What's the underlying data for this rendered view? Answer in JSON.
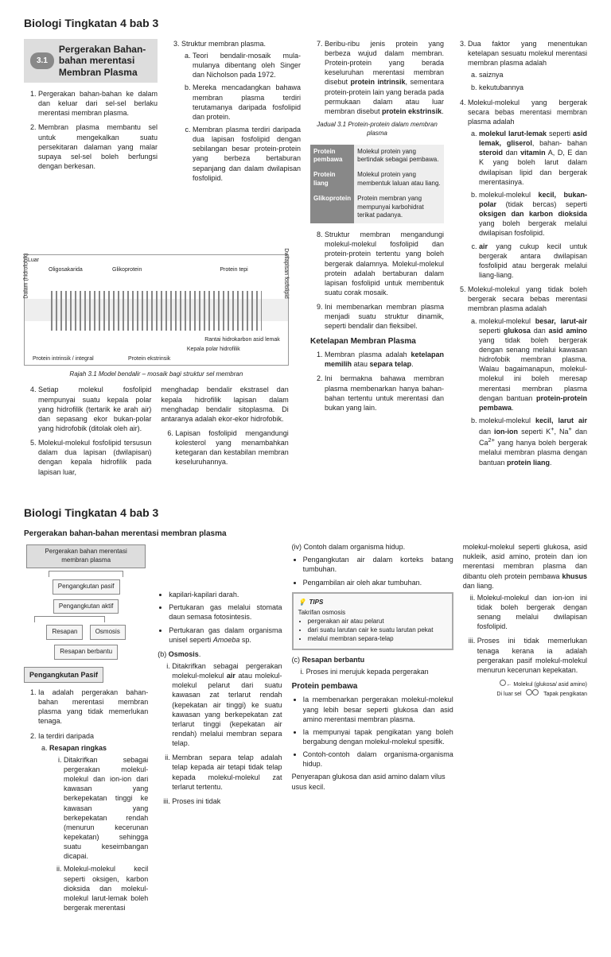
{
  "page1": {
    "title": "Biologi Tingkatan 4 bab 3",
    "badge": "3.1",
    "heading": "Pergerakan Bahan-bahan merentasi Membran Plasma",
    "list1": [
      "Pergerakan bahan-bahan ke dalam dan keluar dari sel-sel berlaku merentasi membran plasma.",
      "Membran plasma membantu sel untuk mengekalkan suatu persekitaran dalaman yang malar supaya sel-sel boleh berfungsi dengan berkesan."
    ],
    "figLabels": {
      "luar": "Luar",
      "oligo": "Oligosakarida",
      "gliko": "Glikoprotein",
      "tepi": "Protein tepi",
      "dalam": "Dalam (hidrofobik)",
      "dwilapisan": "Dwilapisan fosfolipid",
      "intrinsik": "Protein intrinsik / integral",
      "ekstrinsik": "Protein ekstrinsik",
      "kepala": "Kepala polar hidrofilik",
      "rantai": "Rantai hidrokarbon asid lemak"
    },
    "figCaption": "Rajah 3.1 Model bendalir – mosaik bagi struktur sel membran",
    "list4": [
      "Setiap molekul fosfolipid mempunyai suatu kepala polar yang hidrofilik (tertarik ke arah air) dan sepasang ekor bukan-polar yang hidrofobik (ditolak oleh air).",
      "Molekul-molekul fosfolipid tersusun dalam dua lapisan (dwilapisan) dengan kepala hidrofilik pada lapisan luar,"
    ],
    "col2_3": {
      "intro": "Struktur membran plasma.",
      "items": [
        "Teori bendalir-mosaik mula-mulanya dibentang oleh Singer dan Nicholson pada 1972.",
        "Mereka mencadangkan bahawa membran plasma terdiri terutamanya daripada fosfolipid dan protein.",
        "Membran plasma terdiri daripada dua lapisan fosfolipid dengan sebilangan besar protein-protein yang berbeza bertaburan sepanjang dan dalam dwilapisan fosfolipid."
      ],
      "cont": "menghadap bendalir ekstrasel dan kepala hidrofilik lapisan dalam menghadap bendalir sitoplasma. Di antaranya adalah ekor-ekor hidrofobik.",
      "item6": "Lapisan fosfolipid mengandungi kolesterol yang menambahkan ketegaran dan kestabilan membran keseluruhannya."
    },
    "col3": {
      "item7": "Beribu-ribu jenis protein yang berbeza wujud dalam membran. Protein-protein yang berada keseluruhan merentasi membran disebut <b>protein intrinsik</b>, sementara protein-protein lain yang berada pada permukaan dalam atau luar membran disebut <b>protein ekstrinsik</b>.",
      "tblCaption": "Jadual 3.1 Protein-protein dalam membran plasma",
      "tbl": [
        [
          "Protein pembawa",
          "Molekul protein yang bertindak sebagai pembawa."
        ],
        [
          "Protein liang",
          "Molekul protein yang membentuk laluan atau liang."
        ],
        [
          "Glikoprotein",
          "Protein membran yang mempunyai karbohidrat terikat padanya."
        ]
      ],
      "item8": "Struktur membran mengandungi molekul-molekul fosfolipid dan protein-protein tertentu yang boleh bergerak dalamnya. Molekul-molekul protein adalah bertaburan dalam lapisan fosfolipid untuk membentuk suatu corak mosaik.",
      "item9": "Ini membenarkan membran plasma menjadi suatu struktur dinamik, seperti bendalir dan fleksibel.",
      "subhead": "Ketelapan Membran Plasma",
      "k1": "Membran plasma adalah <b>ketelapan memilih</b> atau <b>separa telap</b>.",
      "k2": "Ini bermakna bahawa membran plasma membenarkan hanya bahan-bahan tertentu untuk merentasi dan bukan yang lain."
    },
    "col4": {
      "item3": "Dua faktor yang menentukan ketelapan sesuatu molekul merentasi membran plasma adalah",
      "item3list": [
        "saiznya",
        "kekutubannya"
      ],
      "item4": "Molekul-molekul yang bergerak secara bebas merentasi membran plasma adalah",
      "item4list": [
        "<b>molekul larut-lemak</b> seperti <b>asid lemak, gliserol</b>, bahan- bahan <b>steroid</b> dan <b>vitamin</b> A, D, E dan K yang boleh larut dalam dwilapisan lipid dan bergerak merentasinya.",
        "molekul-molekul <b>kecil, bukan-polar</b> (tidak bercas) seperti <b>oksigen dan karbon dioksida</b> yang boleh bergerak melalui dwilapisan fosfolipid.",
        "<b>air</b> yang cukup kecil untuk bergerak antara dwilapisan fosfolipid atau bergerak melalui liang-liang."
      ],
      "item5": "Molekul-molekul yang tidak boleh bergerak secara bebas merentasi membran plasma adalah",
      "item5list": [
        "molekul-molekul <b>besar, larut-air</b> seperti <b>glukosa</b> dan <b>asid amino</b> yang tidak boleh bergerak dengan senang melalui kawasan hidrofobik membran plasma. Walau bagaimanapun, molekul-molekul ini boleh meresap merentasi membran plasma dengan bantuan <b>protein-protein pembawa</b>.",
        "molekul-molekul <b>kecil, larut air</b> dan <b>ion-ion</b> seperti K<sup>+</sup>, Na<sup>+</sup> dan Ca<sup>2+</sup> yang hanya boleh bergerak melalui membran plasma dengan bantuan <b>protein liang</b>."
      ]
    }
  },
  "page2": {
    "title": "Biologi Tingkatan 4 bab 3",
    "subhead": "Pergerakan bahan-bahan merentasi membran plasma",
    "tree": {
      "top": "Pergerakan bahan merentasi membran plasma",
      "l2": [
        "Pengangkutan pasif",
        "Pengangkutan aktif"
      ],
      "l3": [
        "Resapan",
        "Osmosis",
        "Resapan berbantu"
      ]
    },
    "passiveHdr": "Pengangkutan Pasif",
    "p1": "Ia adalah pergerakan bahan-bahan merentasi membran plasma yang tidak memerlukan tenaga.",
    "p2": "Ia terdiri daripada",
    "p2a": "<b>Resapan ringkas</b>",
    "p2a_i": "Ditakrifkan sebagai pergerakan molekul-molekul dan ion-ion dari kawasan yang berkepekatan tinggi ke kawasan yang berkepekatan rendah (menurun kecerunan kepekatan) sehingga suatu keseimbangan dicapai.",
    "p2a_ii": "Molekul-molekul kecil seperti oksigen, karbon dioksida dan molekul-molekul larut-lemak boleh bergerak merentasi",
    "col2top": [
      "kapilari-kapilari darah.",
      "Pertukaran gas melalui stomata daun semasa fotosintesis.",
      "Pertukaran gas dalam organisma unisel seperti <i>Amoeba</i> sp."
    ],
    "osmosis": "<b>Osmosis</b>.",
    "osm_i": "Ditakrifkan sebagai pergerakan molekul-molekul <b>air</b> atau molekul-molekul pelarut dari suatu kawasan zat terlarut rendah (kepekatan air tinggi) ke suatu kawasan yang berkepekatan zat terlarut tinggi (kepekatan air rendah) melalui membran separa telap.",
    "osm_ii": "Membran separa telap adalah telap kepada air tetapi tidak telap kepada molekul-molekul zat terlarut tertentu.",
    "osm_iii": "Proses ini tidak",
    "col3": {
      "contoh": "Contoh dalam organisma hidup.",
      "contohList": [
        "Pengangkutan air dalam korteks batang tumbuhan.",
        "Pengambilan air oleh akar tumbuhan."
      ],
      "tipsHdr": "TIPS",
      "tipsSub": "Takrifan osmosis",
      "tips": [
        "pergerakan air atau pelarut",
        "dari suatu larutan cair ke suatu larutan pekat",
        "melalui membran separa-telap"
      ],
      "rb": "<b>Resapan berbantu</b>",
      "rb_i": "Proses ini merujuk kepada pergerakan",
      "pembawaHdr": "Protein pembawa",
      "pembawa": [
        "Ia membenarkan pergerakan molekul-molekul yang lebih besar seperti glukosa dan asid amino merentasi membran plasma.",
        "Ia mempunyai tapak pengikatan yang boleh bergabung dengan molekul-molekul spesifik.",
        "Contoh-contoh dalam organisma-organisma hidup."
      ],
      "penyerapan": "Penyerapan glukosa dan asid amino dalam vilus usus kecil."
    },
    "col4top": "molekul-molekul seperti glukosa, asid nukleik, asid amino, protein dan ion merentasi membran plasma dan dibantu oleh protein pembawa <b>khusus</b> dan liang.",
    "col4_ii": "Molekul-molekul dan ion-ion ini tidak boleh bergerak dengan senang melalui dwilapisan fosfolipid.",
    "col4_iii": "Proses ini tidak memerlukan tenaga kerana ia adalah pergerakan pasif molekul-molekul menurun kecerunan kepekatan.",
    "molDiag": {
      "m1": "Molekul (glukosa/ asid amino)",
      "m2": "Di luar sel",
      "m3": "Tapak pengikatan"
    }
  }
}
